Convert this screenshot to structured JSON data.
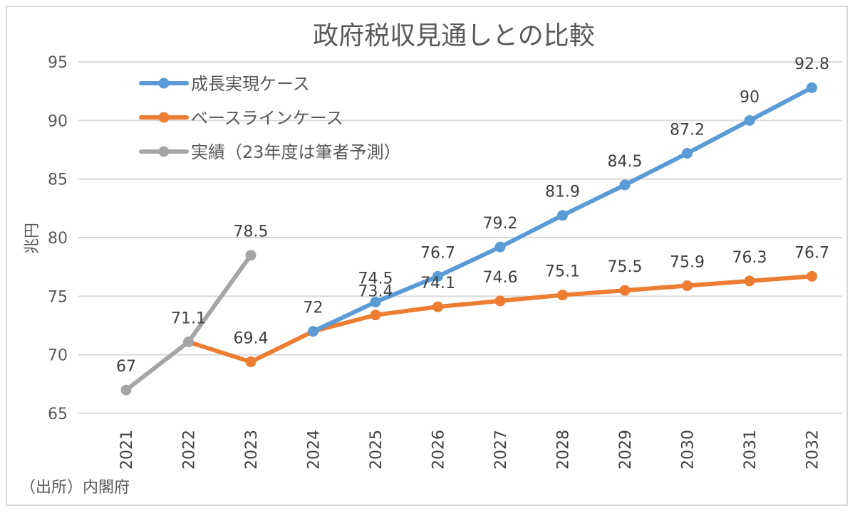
{
  "chart_data": {
    "type": "line",
    "title": "政府税収見通しとの比較",
    "ylabel": "兆円",
    "xlabel": "",
    "categories": [
      "2021",
      "2022",
      "2023",
      "2024",
      "2025",
      "2026",
      "2027",
      "2028",
      "2029",
      "2030",
      "2031",
      "2032"
    ],
    "ylim": [
      65,
      95
    ],
    "yticks": [
      65,
      70,
      75,
      80,
      85,
      90,
      95
    ],
    "grid": true,
    "legend_position": "top-left",
    "series": [
      {
        "name": "成長実現ケース",
        "color": "#5b9bd5",
        "values": [
          null,
          null,
          null,
          72,
          74.5,
          76.7,
          79.2,
          81.9,
          84.5,
          87.2,
          90,
          92.8
        ]
      },
      {
        "name": "ベースラインケース",
        "color": "#ed7d31",
        "values": [
          null,
          71.1,
          69.4,
          72,
          73.4,
          74.1,
          74.6,
          75.1,
          75.5,
          75.9,
          76.3,
          76.7
        ]
      },
      {
        "name": "実績（23年度は筆者予測）",
        "color": "#a5a5a5",
        "values": [
          67,
          71.1,
          78.5,
          null,
          null,
          null,
          null,
          null,
          null,
          null,
          null,
          null
        ]
      }
    ]
  },
  "source_note": "（出所）内閣府"
}
